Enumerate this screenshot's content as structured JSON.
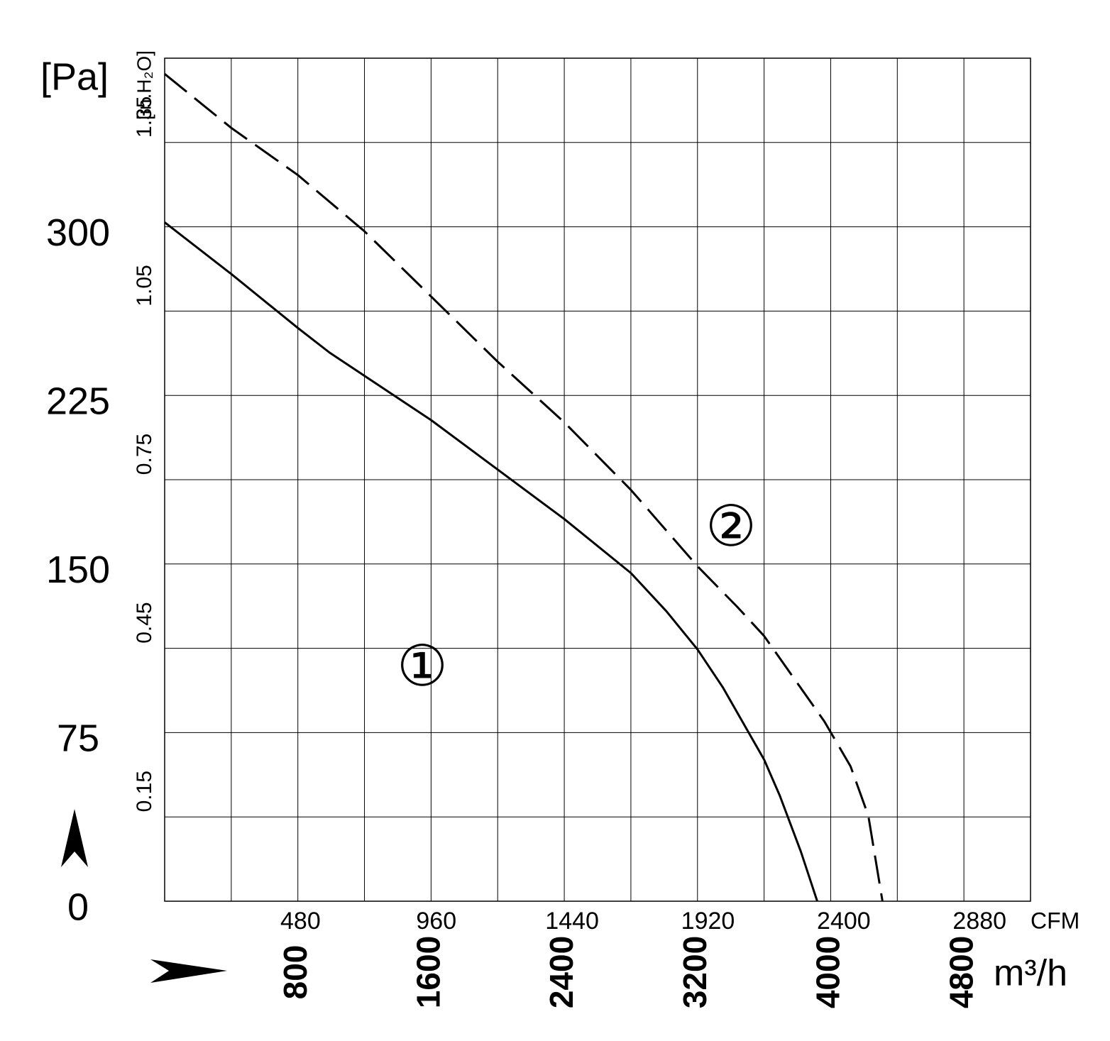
{
  "chart_data": {
    "type": "line",
    "x_label": "m³/h",
    "x2_label": "CFM",
    "y_label": "[Pa]",
    "y2_label": "[in.H₂O]",
    "xlim": [
      0,
      5200
    ],
    "xticks": [
      800,
      1600,
      2400,
      3200,
      4000,
      4800
    ],
    "x_minor_ticks": [
      400,
      1200,
      2000,
      2800,
      3600,
      4400
    ],
    "x2lim": [
      0,
      3060
    ],
    "x2ticks": [
      480,
      960,
      1440,
      1920,
      2400,
      2880
    ],
    "ylim": [
      0,
      375
    ],
    "yticks": [
      0,
      75,
      150,
      225,
      300
    ],
    "y2lim": [
      0,
      1.5
    ],
    "y2ticks": [
      0.15,
      0.45,
      0.75,
      1.05,
      1.35
    ],
    "grid": true,
    "series": [
      {
        "name": "①",
        "color": "#000000",
        "line_style": "solid",
        "x": [
          0,
          400,
          800,
          991,
          1600,
          2000,
          2400,
          2800,
          3013,
          3200,
          3353,
          3600,
          3694,
          3821,
          3919
        ],
        "values": [
          302,
          279,
          255,
          244,
          214,
          192,
          170,
          146,
          129,
          112,
          95,
          63,
          47,
          22,
          0
        ]
      },
      {
        "name": "②",
        "color": "#000000",
        "line_style": "dashed",
        "x": [
          0,
          400,
          800,
          1200,
          1600,
          2000,
          2400,
          2800,
          3200,
          3438,
          3600,
          3962,
          4119,
          4226,
          4311
        ],
        "values": [
          368,
          344,
          323,
          298,
          269,
          240,
          213,
          183,
          149,
          131,
          118,
          80,
          60,
          38,
          0
        ]
      }
    ]
  }
}
